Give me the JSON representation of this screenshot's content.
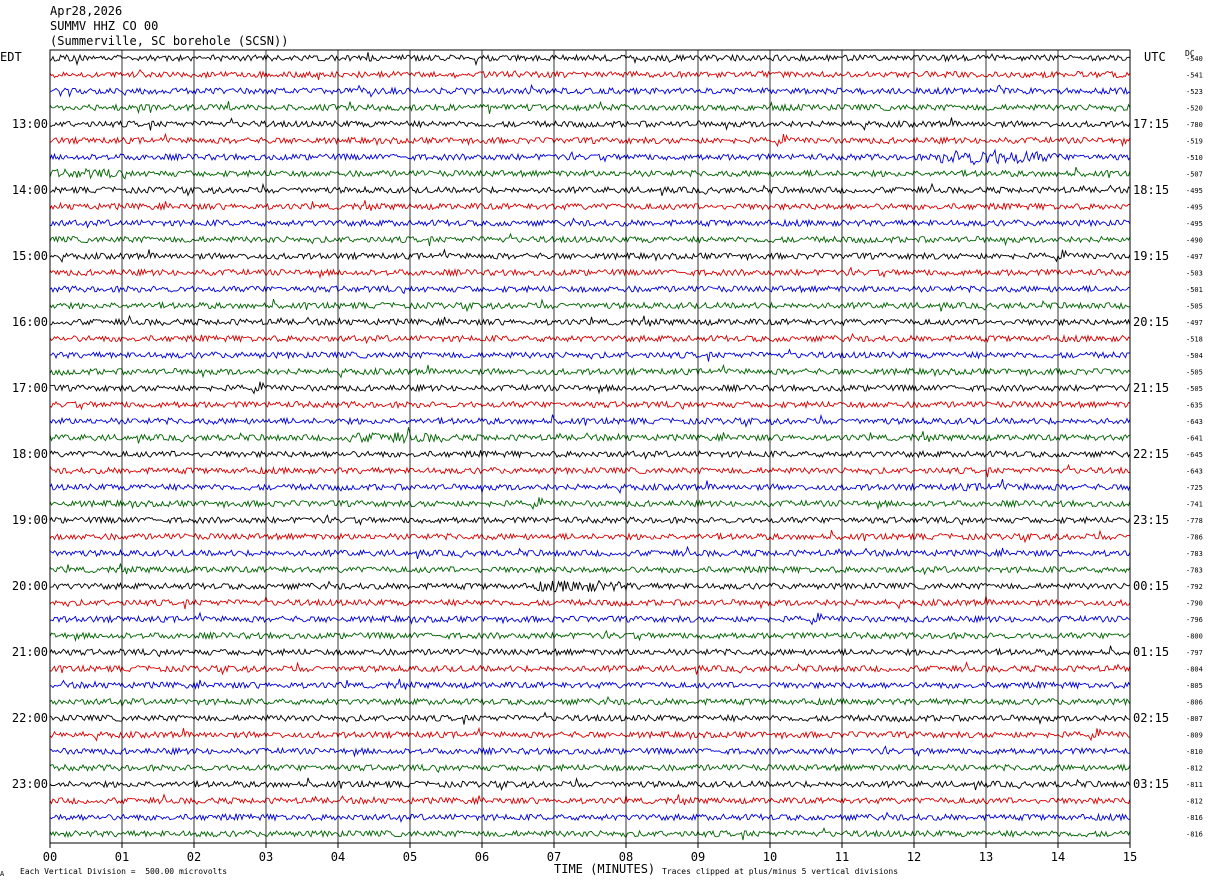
{
  "header": {
    "date": "Apr28,2026",
    "station": "SUMMV HHZ CO 00",
    "location": "(Summerville, SC borehole (SCSN))"
  },
  "left_zone": "EDT",
  "right_zone": "UTC",
  "dc_label": "DC",
  "footer": {
    "scale_note": "Each Vertical Division =  500.00 microvolts",
    "xlabel": "TIME (MINUTES)",
    "clip_note": "Traces clipped at plus/minus 5 vertical divisions",
    "corner_mark": "A"
  },
  "chart_data": {
    "type": "line",
    "title": "",
    "xlabel": "TIME (MINUTES)",
    "ylabel": "",
    "xlim": [
      0,
      15
    ],
    "x_ticks": [
      "00",
      "01",
      "02",
      "03",
      "04",
      "05",
      "06",
      "07",
      "08",
      "09",
      "10",
      "11",
      "12",
      "13",
      "14",
      "15"
    ],
    "grid": "vertical",
    "trace_colors": [
      "#000000",
      "#dd0000",
      "#0000dd",
      "#006400"
    ],
    "left_hour_labels": [
      "13:00",
      "14:00",
      "15:00",
      "16:00",
      "17:00",
      "18:00",
      "19:00",
      "20:00",
      "21:00",
      "22:00",
      "23:00"
    ],
    "right_hour_labels": [
      "17:15",
      "18:15",
      "19:15",
      "20:15",
      "21:15",
      "22:15",
      "23:15",
      "00:15",
      "01:15",
      "02:15",
      "03:15"
    ],
    "dc_offsets": [
      -540,
      -541,
      -523,
      -520,
      -780,
      -519,
      -510,
      -507,
      -495,
      -495,
      -495,
      -490,
      -497,
      -503,
      -501,
      -505,
      -497,
      -518,
      -504,
      -505,
      -505,
      -635,
      -643,
      -641,
      -645,
      -643,
      -725,
      -741,
      -778,
      -786,
      -783,
      -783,
      -792,
      -790,
      -796,
      -800,
      -797,
      -804,
      -805,
      -806,
      -807,
      -809,
      -810,
      -812,
      -811,
      -812,
      -816,
      -816
    ],
    "events": [
      {
        "trace": 6,
        "start_min": 12.3,
        "end_min": 15.0,
        "amplitude": 2.6
      },
      {
        "trace": 7,
        "start_min": 0.0,
        "end_min": 1.8,
        "amplitude": 1.6
      },
      {
        "trace": 23,
        "start_min": 4.0,
        "end_min": 6.6,
        "amplitude": 1.8
      },
      {
        "trace": 26,
        "start_min": 12.5,
        "end_min": 15.0,
        "amplitude": 1.3
      },
      {
        "trace": 32,
        "start_min": 6.7,
        "end_min": 9.0,
        "amplitude": 2.0
      }
    ]
  }
}
